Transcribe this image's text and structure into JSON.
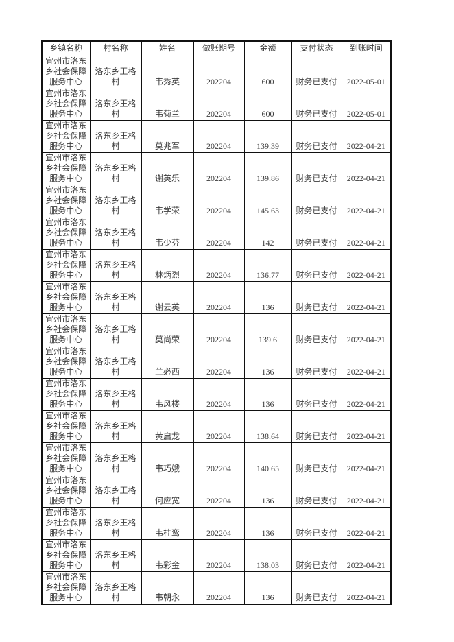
{
  "colors": {
    "background": "#ffffff",
    "border": "#111111",
    "text": "#3c3c3c"
  },
  "table": {
    "keys": [
      "township",
      "village",
      "name",
      "period",
      "amount",
      "status",
      "date"
    ],
    "headers": [
      "乡镇名称",
      "村名称",
      "姓名",
      "做账期号",
      "金额",
      "支付状态",
      "到账时间"
    ],
    "rows": [
      [
        "宜州市洛东乡社会保障服务中心",
        "洛东乡王格村",
        "韦秀英",
        "202204",
        "600",
        "财务已支付",
        "2022-05-01"
      ],
      [
        "宜州市洛东乡社会保障服务中心",
        "洛东乡王格村",
        "韦菊兰",
        "202204",
        "600",
        "财务已支付",
        "2022-05-01"
      ],
      [
        "宜州市洛东乡社会保障服务中心",
        "洛东乡王格村",
        "莫兆军",
        "202204",
        "139.39",
        "财务已支付",
        "2022-04-21"
      ],
      [
        "宜州市洛东乡社会保障服务中心",
        "洛东乡王格村",
        "谢英乐",
        "202204",
        "139.86",
        "财务已支付",
        "2022-04-21"
      ],
      [
        "宜州市洛东乡社会保障服务中心",
        "洛东乡王格村",
        "韦学荣",
        "202204",
        "145.63",
        "财务已支付",
        "2022-04-21"
      ],
      [
        "宜州市洛东乡社会保障服务中心",
        "洛东乡王格村",
        "韦少芬",
        "202204",
        "142",
        "财务已支付",
        "2022-04-21"
      ],
      [
        "宜州市洛东乡社会保障服务中心",
        "洛东乡王格村",
        "林炳烈",
        "202204",
        "136.77",
        "财务已支付",
        "2022-04-21"
      ],
      [
        "宜州市洛东乡社会保障服务中心",
        "洛东乡王格村",
        "谢云英",
        "202204",
        "136",
        "财务已支付",
        "2022-04-21"
      ],
      [
        "宜州市洛东乡社会保障服务中心",
        "洛东乡王格村",
        "莫尚荣",
        "202204",
        "139.6",
        "财务已支付",
        "2022-04-21"
      ],
      [
        "宜州市洛东乡社会保障服务中心",
        "洛东乡王格村",
        "兰必西",
        "202204",
        "136",
        "财务已支付",
        "2022-04-21"
      ],
      [
        "宜州市洛东乡社会保障服务中心",
        "洛东乡王格村",
        "韦风楼",
        "202204",
        "136",
        "财务已支付",
        "2022-04-21"
      ],
      [
        "宜州市洛东乡社会保障服务中心",
        "洛东乡王格村",
        "黄启龙",
        "202204",
        "138.64",
        "财务已支付",
        "2022-04-21"
      ],
      [
        "宜州市洛东乡社会保障服务中心",
        "洛东乡王格村",
        "韦巧娥",
        "202204",
        "140.65",
        "财务已支付",
        "2022-04-21"
      ],
      [
        "宜州市洛东乡社会保障服务中心",
        "洛东乡王格村",
        "何应宽",
        "202204",
        "136",
        "财务已支付",
        "2022-04-21"
      ],
      [
        "宜州市洛东乡社会保障服务中心",
        "洛东乡王格村",
        "韦桂鸾",
        "202204",
        "136",
        "财务已支付",
        "2022-04-21"
      ],
      [
        "宜州市洛东乡社会保障服务中心",
        "洛东乡王格村",
        "韦彩金",
        "202204",
        "138.03",
        "财务已支付",
        "2022-04-21"
      ],
      [
        "宜州市洛东乡社会保障服务中心",
        "洛东乡王格村",
        "韦朝永",
        "202204",
        "136",
        "财务已支付",
        "2022-04-21"
      ]
    ]
  }
}
